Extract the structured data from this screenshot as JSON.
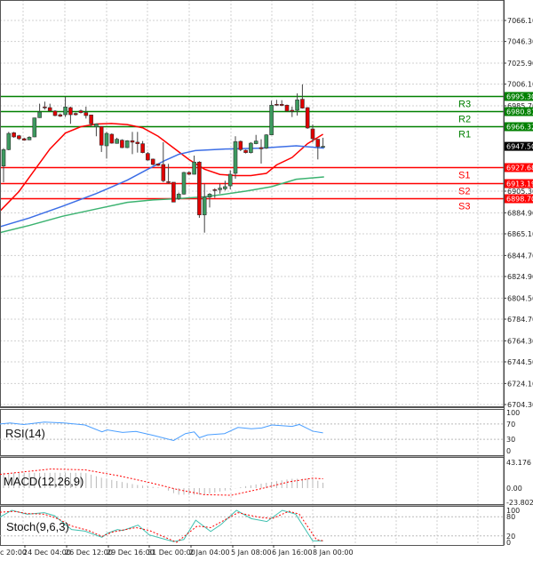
{
  "chart_data": {
    "type": "candlestick",
    "price_axis": {
      "ticks": [
        7066.1,
        7046.3,
        7025.9,
        7006.1,
        6985.7,
        6905.3,
        6884.9,
        6865.1,
        6844.7,
        6824.9,
        6804.5,
        6784.7,
        6764.3,
        6744.5,
        6724.1,
        6704.3
      ],
      "tick_labels": [
        "7066.10",
        "7046.30",
        "7025.90",
        "7006.10",
        "6985.70",
        "6905.30",
        "6884.90",
        "6865.10",
        "6844.70",
        "6824.90",
        "6804.50",
        "6784.70",
        "6764.30",
        "6744.50",
        "6724.10",
        "6704.30"
      ],
      "range": [
        6704.3,
        7085.0
      ]
    },
    "time_axis": {
      "labels": [
        "c 20:00",
        "24 Dec 04:00",
        "26 Dec 12:00",
        "29 Dec 16:00",
        "31 Dec 00:00",
        "2 Jan 04:00",
        "5 Jan 08:00",
        "6 Jan 16:00",
        "8 Jan 00:00"
      ]
    },
    "grid": true,
    "candles_ohlc": [
      [
        6929.0,
        6945.8,
        6913.7,
        6944.4
      ],
      [
        6944.4,
        6961.1,
        6943.8,
        6959.7
      ],
      [
        6960.3,
        6961.1,
        6955.6,
        6956.4
      ],
      [
        6957.5,
        6958.3,
        6953.6,
        6954.7
      ],
      [
        6954.7,
        6955.6,
        6952.8,
        6953.3
      ],
      [
        6953.6,
        6957.0,
        6953.3,
        6956.1
      ],
      [
        6956.4,
        6974.5,
        6956.1,
        6974.3
      ],
      [
        6974.5,
        6987.7,
        6974.3,
        6979.8
      ],
      [
        6984.6,
        6989.6,
        6982.1,
        6983.8
      ],
      [
        6984.0,
        6987.7,
        6980.4,
        6981.0
      ],
      [
        6980.7,
        6981.5,
        6975.9,
        6976.5
      ],
      [
        6977.3,
        6978.5,
        6975.1,
        6975.9
      ],
      [
        6977.3,
        6994.1,
        6975.1,
        6984.6
      ],
      [
        6984.0,
        6984.9,
        6968.7,
        6977.3
      ],
      [
        6978.5,
        6979.3,
        6976.5,
        6977.3
      ],
      [
        6981.0,
        6982.1,
        6978.5,
        6979.3
      ],
      [
        6979.3,
        6984.9,
        6973.7,
        6976.5
      ],
      [
        6977.1,
        6977.3,
        6965.9,
        6968.7
      ],
      [
        6965.9,
        6968.7,
        6957.0,
        6968.7
      ],
      [
        6966.2,
        6966.2,
        6942.2,
        6948.6
      ],
      [
        6948.0,
        6961.1,
        6936.0,
        6959.7
      ],
      [
        6958.9,
        6959.7,
        6950.0,
        6950.5
      ],
      [
        6950.3,
        6955.6,
        6950.0,
        6954.2
      ],
      [
        6953.3,
        6954.2,
        6945.8,
        6946.3
      ],
      [
        6946.3,
        6953.3,
        6945.8,
        6952.8
      ],
      [
        6952.8,
        6961.1,
        6940.2,
        6951.4
      ],
      [
        6951.4,
        6961.1,
        6941.6,
        6950.0
      ],
      [
        6950.0,
        6952.5,
        6941.0,
        6941.6
      ],
      [
        6940.8,
        6942.2,
        6934.0,
        6934.6
      ],
      [
        6935.5,
        6936.0,
        6929.6,
        6930.4
      ],
      [
        6931.0,
        6931.3,
        6929.0,
        6929.6
      ],
      [
        6930.4,
        6951.4,
        6913.7,
        6915.1
      ],
      [
        6914.2,
        6931.0,
        6912.3,
        6913.7
      ],
      [
        6913.7,
        6913.7,
        6895.0,
        6895.0
      ],
      [
        6898.3,
        6904.0,
        6897.0,
        6902.5
      ],
      [
        6902.5,
        6923.5,
        6902.0,
        6922.9
      ],
      [
        6922.9,
        6924.0,
        6920.5,
        6921.2
      ],
      [
        6921.2,
        6938.8,
        6921.0,
        6932.7
      ],
      [
        6932.7,
        6933.5,
        6880.2,
        6882.9
      ],
      [
        6882.9,
        6912.3,
        6866.2,
        6899.7
      ],
      [
        6899.7,
        6903.5,
        6889.9,
        6902.5
      ],
      [
        6906.7,
        6908.0,
        6899.0,
        6905.9
      ],
      [
        6906.7,
        6912.3,
        6903.0,
        6908.1
      ],
      [
        6907.5,
        6915.1,
        6906.0,
        6909.5
      ],
      [
        6910.3,
        6925.0,
        6907.0,
        6921.2
      ],
      [
        6922.1,
        6957.0,
        6917.0,
        6951.9
      ],
      [
        6952.2,
        6953.0,
        6943.0,
        6944.4
      ],
      [
        6943.8,
        6944.5,
        6940.8,
        6941.6
      ],
      [
        6941.6,
        6951.5,
        6940.8,
        6950.5
      ],
      [
        6950.0,
        6958.3,
        6949.5,
        6952.5
      ],
      [
        6946.3,
        6954.2,
        6931.3,
        6945.2
      ],
      [
        6945.8,
        6959.0,
        6945.0,
        6958.3
      ],
      [
        6958.3,
        6990.5,
        6958.0,
        6986.3
      ],
      [
        6987.1,
        6991.3,
        6985.5,
        6986.3
      ],
      [
        6987.1,
        6991.0,
        6985.5,
        6986.0
      ],
      [
        6986.3,
        6986.8,
        6980.4,
        6980.7
      ],
      [
        6981.5,
        6984.9,
        6975.1,
        6980.4
      ],
      [
        6981.5,
        6997.4,
        6976.5,
        6991.3
      ],
      [
        6991.9,
        7005.8,
        6983.0,
        6983.5
      ],
      [
        6984.0,
        6984.5,
        6964.0,
        6964.8
      ],
      [
        6963.9,
        6968.1,
        6951.4,
        6954.7
      ],
      [
        6954.2,
        6954.5,
        6935.2,
        6947.2
      ],
      [
        6947.2,
        6955.6,
        6946.5,
        6947.5
      ]
    ],
    "moving_averages": [
      {
        "color": "#ff0000",
        "points": [
          [
            -1,
            6885
          ],
          [
            3,
            6905
          ],
          [
            6,
            6925
          ],
          [
            9,
            6945
          ],
          [
            12,
            6960
          ],
          [
            15,
            6966
          ],
          [
            18,
            6968.5
          ],
          [
            21,
            6969
          ],
          [
            24,
            6968
          ],
          [
            27,
            6965
          ],
          [
            30,
            6957
          ],
          [
            33,
            6946
          ],
          [
            36,
            6935
          ],
          [
            39,
            6926
          ],
          [
            42,
            6921
          ],
          [
            45,
            6920
          ],
          [
            48,
            6920
          ],
          [
            51,
            6922
          ],
          [
            53,
            6930
          ],
          [
            56,
            6937
          ],
          [
            59,
            6950
          ],
          [
            62,
            6958.9
          ]
        ]
      },
      {
        "color": "#3c6ee6",
        "points": [
          [
            -0.7,
            6871.8
          ],
          [
            5,
            6880
          ],
          [
            11.4,
            6891
          ],
          [
            18,
            6903
          ],
          [
            24,
            6915.6
          ],
          [
            28,
            6926
          ],
          [
            31.5,
            6934.6
          ],
          [
            34,
            6940
          ],
          [
            37.2,
            6943.5
          ],
          [
            43,
            6945
          ],
          [
            49.9,
            6945.8
          ],
          [
            56.8,
            6948
          ],
          [
            62.2,
            6945.8
          ]
        ]
      },
      {
        "color": "#3cb371",
        "points": [
          [
            -0.7,
            6866.2
          ],
          [
            5,
            6873
          ],
          [
            11.4,
            6881.6
          ],
          [
            18,
            6888.5
          ],
          [
            24,
            6894.7
          ],
          [
            29,
            6897
          ],
          [
            34,
            6898.3
          ],
          [
            39,
            6900
          ],
          [
            43,
            6902.5
          ],
          [
            47,
            6905.3
          ],
          [
            52,
            6909.5
          ],
          [
            56.8,
            6916.5
          ],
          [
            62.2,
            6918.7
          ]
        ]
      }
    ],
    "levels": [
      {
        "name": "R3",
        "value": 6995.3,
        "label": "6995.30",
        "color": "#008000"
      },
      {
        "name": "R2",
        "value": 6980.81,
        "label": "6980.81",
        "color": "#008000"
      },
      {
        "name": "R1",
        "value": 6966.32,
        "label": "6966.32",
        "color": "#008000"
      },
      {
        "name": "S1",
        "value": 6927.68,
        "label": "6927.68",
        "color": "#ff0000"
      },
      {
        "name": "S2",
        "value": 6913.19,
        "label": "6913.19",
        "color": "#ff0000"
      },
      {
        "name": "S3",
        "value": 6898.7,
        "label": "6898.70",
        "color": "#ff0000"
      }
    ],
    "current_price": {
      "value": 6947.5,
      "label": "6947.50"
    },
    "rsi": {
      "label": "RSI(14)",
      "ticks": [
        "100",
        "70",
        "30",
        "0"
      ],
      "tick_values": [
        100,
        70,
        30,
        0
      ],
      "color": "#4a9eff",
      "points": [
        [
          -0.7,
          70
        ],
        [
          1.3,
          72.6
        ],
        [
          3.9,
          68.7
        ],
        [
          7.9,
          75
        ],
        [
          11.8,
          72.6
        ],
        [
          15.8,
          67.4
        ],
        [
          19.1,
          49.4
        ],
        [
          20.1,
          54.5
        ],
        [
          23.1,
          48
        ],
        [
          25.7,
          50.6
        ],
        [
          29,
          40.3
        ],
        [
          33,
          26.8
        ],
        [
          35.3,
          44.8
        ],
        [
          37,
          49.4
        ],
        [
          38,
          34
        ],
        [
          39.6,
          41.6
        ],
        [
          42.9,
          44.8
        ],
        [
          45.5,
          61
        ],
        [
          48.1,
          57.7
        ],
        [
          50.1,
          59.7
        ],
        [
          52.1,
          67.4
        ],
        [
          56,
          63.6
        ],
        [
          57.4,
          68.7
        ],
        [
          60,
          51.3
        ],
        [
          62,
          46.8
        ]
      ]
    },
    "macd": {
      "label": "MACD(12,26,9)",
      "ticks": [
        "43.176",
        "0.00",
        "-23.802"
      ],
      "tick_values": [
        43.176,
        0,
        -23.802
      ],
      "histogram_points": [
        [
          -0.7,
          25.6
        ],
        [
          15.8,
          25.6
        ],
        [
          19.1,
          17
        ],
        [
          25.7,
          5.5
        ],
        [
          31,
          0
        ],
        [
          33.6,
          -11
        ],
        [
          38.9,
          -11
        ],
        [
          44.2,
          -2
        ],
        [
          46.8,
          3
        ],
        [
          52.1,
          10.5
        ],
        [
          56,
          15.6
        ],
        [
          60,
          15.6
        ],
        [
          62,
          9
        ]
      ],
      "signal_color": "#ff0000",
      "signal_points": [
        [
          -0.7,
          23
        ],
        [
          9.2,
          32
        ],
        [
          15.8,
          30.6
        ],
        [
          22.4,
          20.6
        ],
        [
          29,
          8
        ],
        [
          33.6,
          -2
        ],
        [
          38.9,
          -11
        ],
        [
          44.2,
          -12
        ],
        [
          49.5,
          -2
        ],
        [
          55.4,
          10.5
        ],
        [
          60,
          16.6
        ],
        [
          62,
          15.6
        ]
      ]
    },
    "stoch": {
      "label": "Stoch(9,6,3)",
      "ticks": [
        "100",
        "80",
        "20",
        "0"
      ],
      "tick_values": [
        100,
        80,
        20,
        0
      ],
      "main_color": "#40c0b0",
      "signal_color": "#ff0000",
      "main_points": [
        [
          -0.7,
          78.7
        ],
        [
          1.6,
          100
        ],
        [
          4.6,
          88
        ],
        [
          7.9,
          92.6
        ],
        [
          9.9,
          83
        ],
        [
          13.2,
          40
        ],
        [
          15.8,
          35
        ],
        [
          19.1,
          15.7
        ],
        [
          20.1,
          27.8
        ],
        [
          22.1,
          40
        ],
        [
          23.1,
          37
        ],
        [
          26.1,
          53.7
        ],
        [
          28.3,
          23
        ],
        [
          33,
          2
        ],
        [
          35,
          9
        ],
        [
          37.3,
          69
        ],
        [
          40.2,
          34
        ],
        [
          42.2,
          55.6
        ],
        [
          45.2,
          100
        ],
        [
          48.1,
          74
        ],
        [
          51.1,
          65
        ],
        [
          54.1,
          100
        ],
        [
          56.7,
          88
        ],
        [
          60,
          4.6
        ],
        [
          62,
          4.6
        ]
      ],
      "signal_points": [
        [
          -0.7,
          94
        ],
        [
          2,
          97
        ],
        [
          4.6,
          90
        ],
        [
          7.9,
          88
        ],
        [
          10.5,
          74
        ],
        [
          13.2,
          51
        ],
        [
          16.5,
          37
        ],
        [
          19.1,
          18.5
        ],
        [
          21.1,
          32
        ],
        [
          25.7,
          46
        ],
        [
          28.3,
          37
        ],
        [
          33.6,
          0
        ],
        [
          37.6,
          51
        ],
        [
          40.2,
          46
        ],
        [
          45.5,
          92.6
        ],
        [
          49.5,
          78.7
        ],
        [
          52.1,
          74
        ],
        [
          55.4,
          97
        ],
        [
          57.4,
          88
        ],
        [
          60.7,
          9
        ],
        [
          62,
          4.6
        ]
      ]
    },
    "colors": {
      "bull": "#3c9a5f",
      "bear": "#e00000",
      "border": "#555555",
      "grid": "#d0d0d0"
    }
  }
}
